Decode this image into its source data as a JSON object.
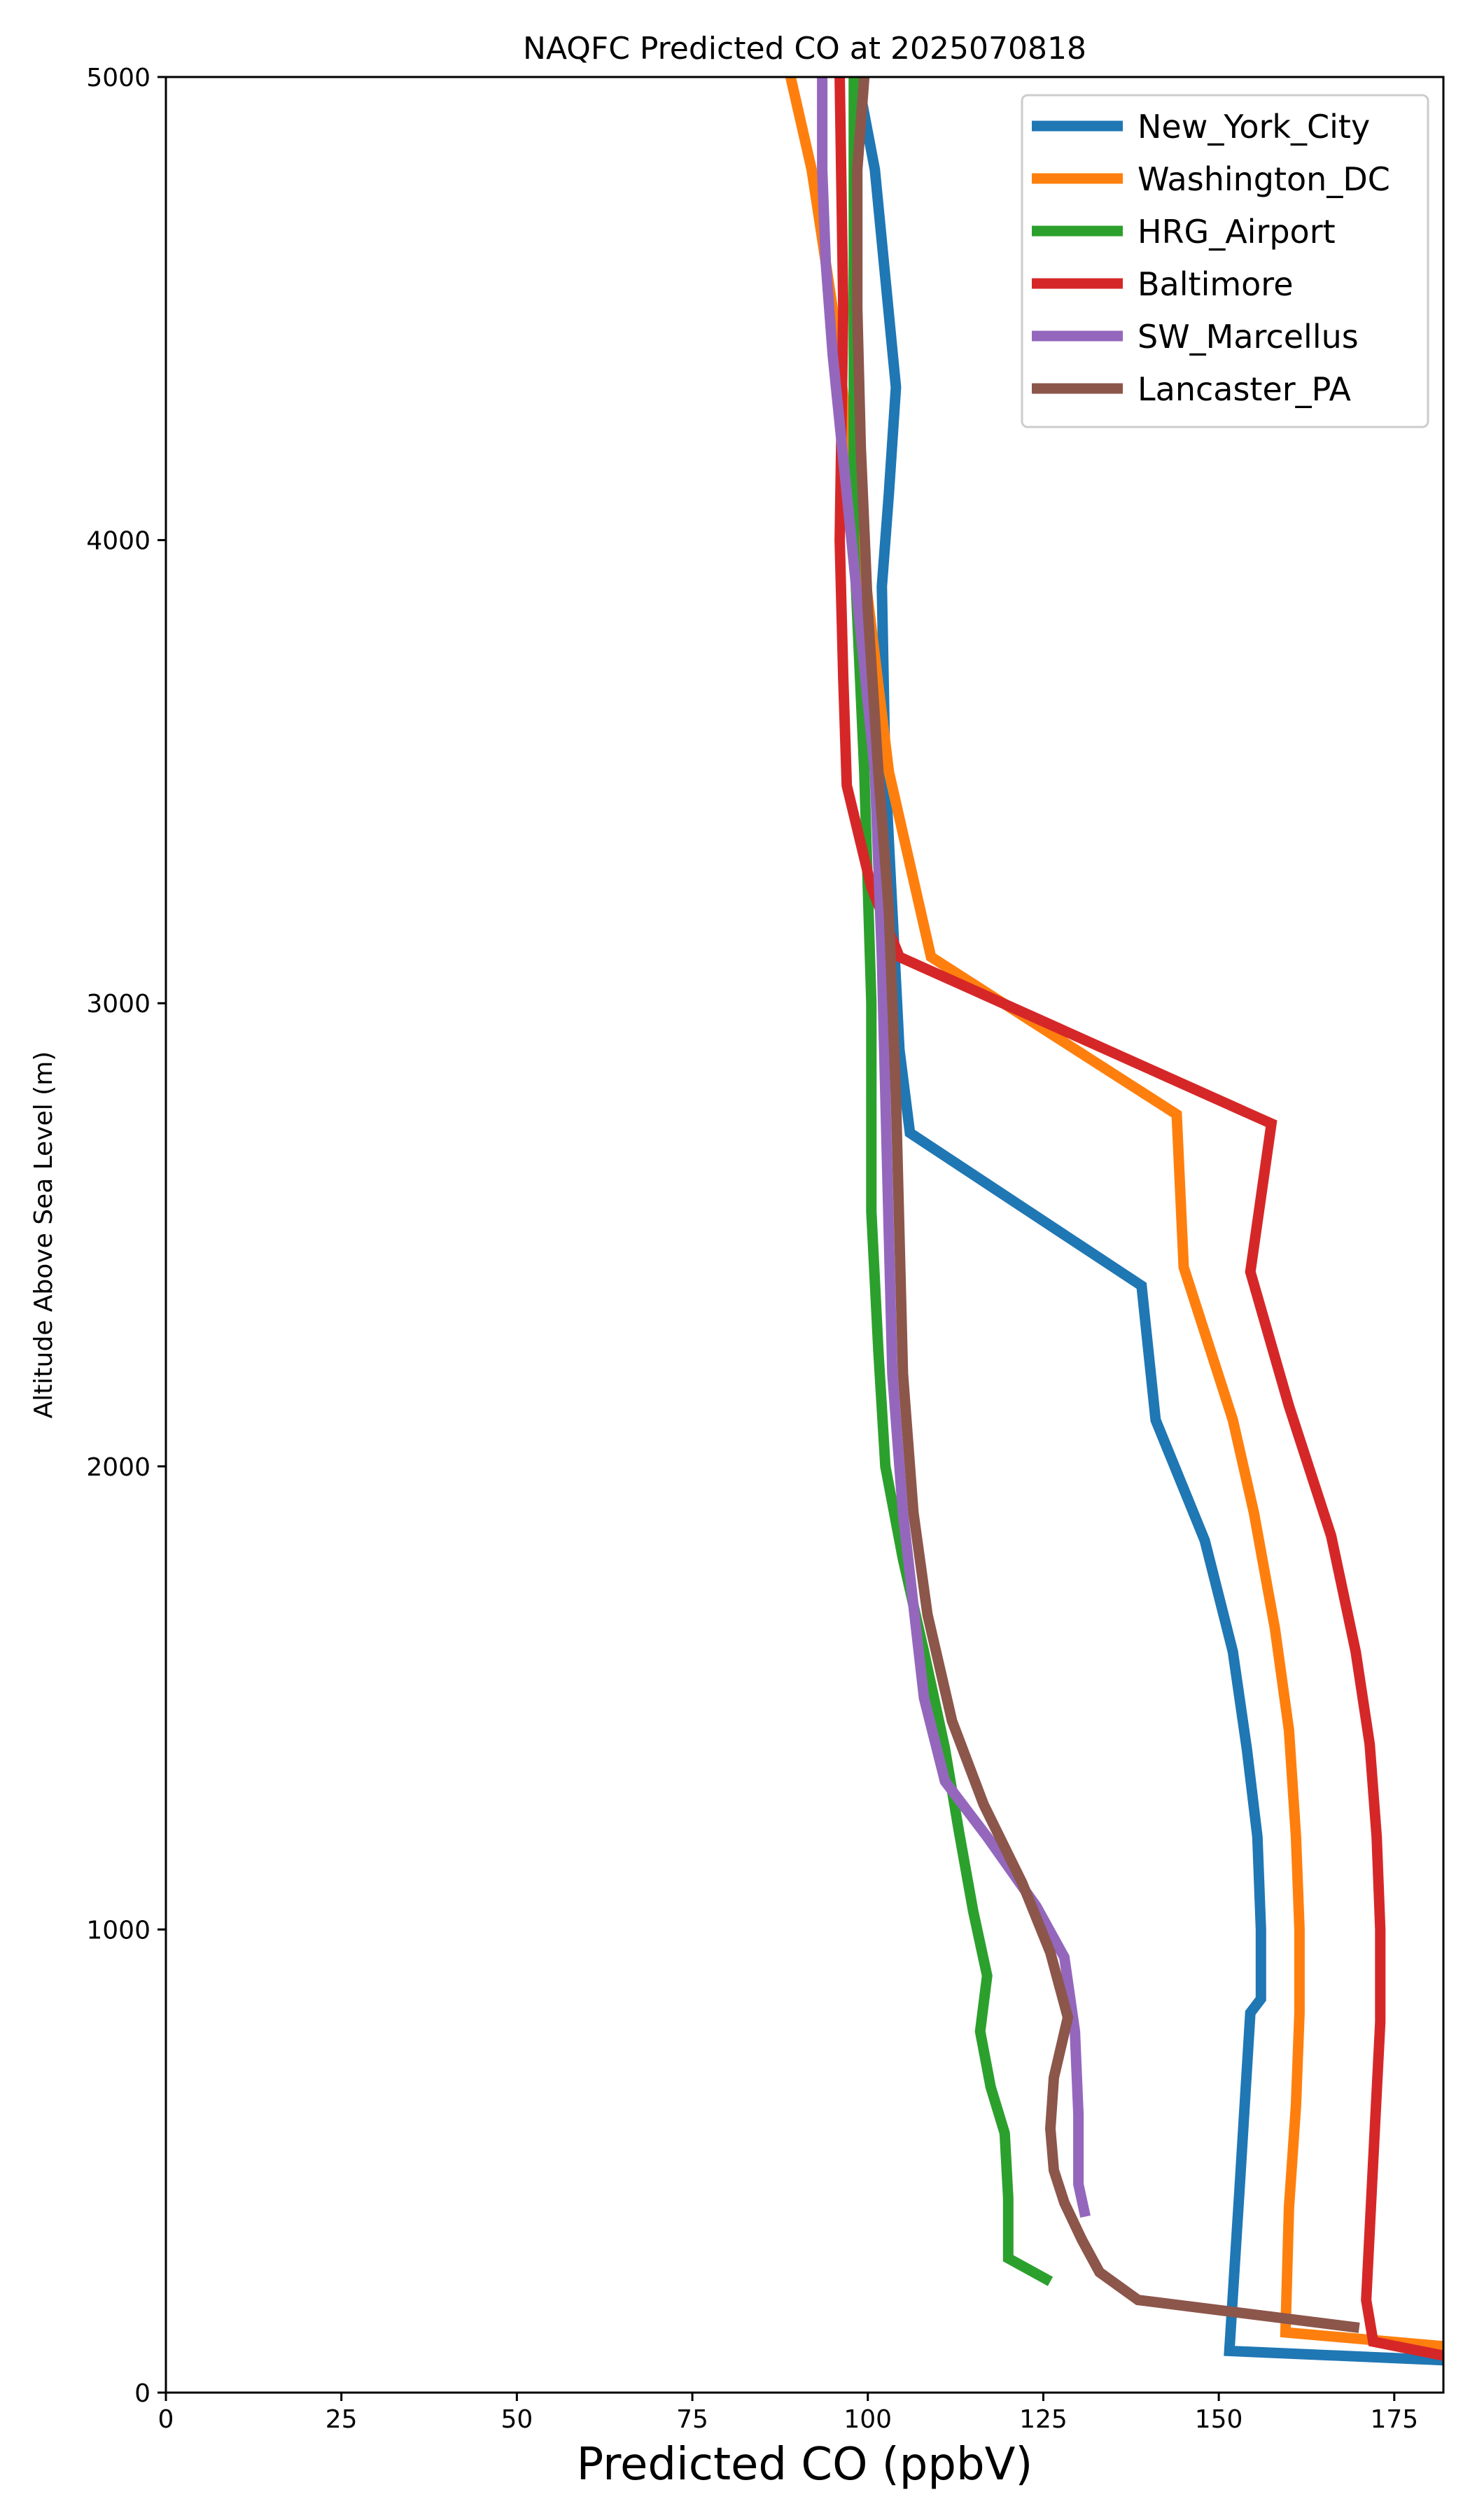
{
  "chart_data": {
    "type": "line",
    "title": "NAQFC Predicted CO at 2025070818",
    "xlabel": "Predicted CO (ppbV)",
    "ylabel": "Altitude Above Sea Level (m)",
    "xlim": [
      0,
      182
    ],
    "ylim": [
      0,
      5000
    ],
    "x_ticks": [
      0,
      25,
      50,
      75,
      100,
      125,
      150,
      175
    ],
    "y_ticks": [
      0,
      1000,
      2000,
      3000,
      4000,
      5000
    ],
    "grid": false,
    "legend_position": "top-right",
    "series": [
      {
        "name": "New_York_City",
        "color": "#1f77b4",
        "points": [
          [
            182,
            70
          ],
          [
            151.5,
            90
          ],
          [
            153,
            450
          ],
          [
            154.5,
            820
          ],
          [
            156,
            850
          ],
          [
            156,
            1000
          ],
          [
            155.5,
            1200
          ],
          [
            154,
            1390
          ],
          [
            152,
            1600
          ],
          [
            148,
            1840
          ],
          [
            141,
            2100
          ],
          [
            139,
            2390
          ],
          [
            106,
            2720
          ],
          [
            104.5,
            2900
          ],
          [
            103.5,
            3200
          ],
          [
            102.5,
            3500
          ],
          [
            102,
            3900
          ],
          [
            103,
            4100
          ],
          [
            104,
            4330
          ],
          [
            101,
            4800
          ],
          [
            98.5,
            5000
          ]
        ]
      },
      {
        "name": "Washington_DC",
        "color": "#ff7f0e",
        "points": [
          [
            182,
            100
          ],
          [
            159.5,
            130
          ],
          [
            160,
            400
          ],
          [
            161,
            620
          ],
          [
            161.5,
            820
          ],
          [
            161.5,
            1000
          ],
          [
            161,
            1200
          ],
          [
            160,
            1430
          ],
          [
            158,
            1650
          ],
          [
            155,
            1900
          ],
          [
            152,
            2100
          ],
          [
            145,
            2430
          ],
          [
            144,
            2760
          ],
          [
            109,
            3100
          ],
          [
            103,
            3500
          ],
          [
            99,
            4000
          ],
          [
            95,
            4500
          ],
          [
            92,
            4800
          ],
          [
            89,
            5000
          ]
        ]
      },
      {
        "name": "HRG_Airport",
        "color": "#2ca02c",
        "points": [
          [
            126,
            240
          ],
          [
            120,
            290
          ],
          [
            120,
            420
          ],
          [
            119.5,
            560
          ],
          [
            117.5,
            660
          ],
          [
            116,
            780
          ],
          [
            117,
            900
          ],
          [
            115,
            1040
          ],
          [
            113,
            1210
          ],
          [
            111,
            1390
          ],
          [
            108,
            1600
          ],
          [
            105,
            1800
          ],
          [
            102.5,
            2000
          ],
          [
            101.5,
            2250
          ],
          [
            100.5,
            2550
          ],
          [
            100.5,
            3000
          ],
          [
            99.5,
            3500
          ],
          [
            98,
            4000
          ],
          [
            98,
            4500
          ],
          [
            98,
            5000
          ]
        ]
      },
      {
        "name": "Baltimore",
        "color": "#d62728",
        "points": [
          [
            182,
            80
          ],
          [
            172,
            110
          ],
          [
            171,
            200
          ],
          [
            172,
            500
          ],
          [
            173,
            800
          ],
          [
            173,
            1000
          ],
          [
            172.5,
            1200
          ],
          [
            171.5,
            1400
          ],
          [
            169.5,
            1600
          ],
          [
            166,
            1850
          ],
          [
            160,
            2130
          ],
          [
            154.5,
            2420
          ],
          [
            157.5,
            2740
          ],
          [
            104.5,
            3100
          ],
          [
            100.5,
            3250
          ],
          [
            97,
            3470
          ],
          [
            96.5,
            3700
          ],
          [
            96,
            4000
          ],
          [
            96.5,
            4500
          ],
          [
            96,
            5000
          ]
        ]
      },
      {
        "name": "SW_Marcellus",
        "color": "#9467bd",
        "points": [
          [
            131,
            380
          ],
          [
            130,
            450
          ],
          [
            130,
            600
          ],
          [
            129.5,
            780
          ],
          [
            128,
            940
          ],
          [
            124,
            1050
          ],
          [
            117,
            1200
          ],
          [
            111,
            1320
          ],
          [
            108,
            1500
          ],
          [
            106.5,
            1700
          ],
          [
            105,
            1900
          ],
          [
            103.5,
            2200
          ],
          [
            103,
            2500
          ],
          [
            102.5,
            2800
          ],
          [
            102,
            3100
          ],
          [
            101,
            3500
          ],
          [
            99,
            3800
          ],
          [
            97,
            4100
          ],
          [
            95,
            4400
          ],
          [
            94,
            4600
          ],
          [
            93.5,
            4800
          ],
          [
            93.5,
            5000
          ]
        ]
      },
      {
        "name": "Lancaster_PA",
        "color": "#8c564b",
        "points": [
          [
            170,
            140
          ],
          [
            138.5,
            200
          ],
          [
            133,
            260
          ],
          [
            130.5,
            330
          ],
          [
            128,
            410
          ],
          [
            126.5,
            480
          ],
          [
            126,
            570
          ],
          [
            126.5,
            680
          ],
          [
            128.5,
            810
          ],
          [
            126,
            950
          ],
          [
            122,
            1100
          ],
          [
            116.5,
            1270
          ],
          [
            112,
            1450
          ],
          [
            108.5,
            1680
          ],
          [
            106.5,
            1900
          ],
          [
            105,
            2200
          ],
          [
            104.5,
            2500
          ],
          [
            104,
            2800
          ],
          [
            103,
            3200
          ],
          [
            101.5,
            3500
          ],
          [
            100,
            3850
          ],
          [
            99,
            4200
          ],
          [
            98.5,
            4500
          ],
          [
            98.5,
            4800
          ],
          [
            99.5,
            5000
          ]
        ]
      }
    ]
  }
}
